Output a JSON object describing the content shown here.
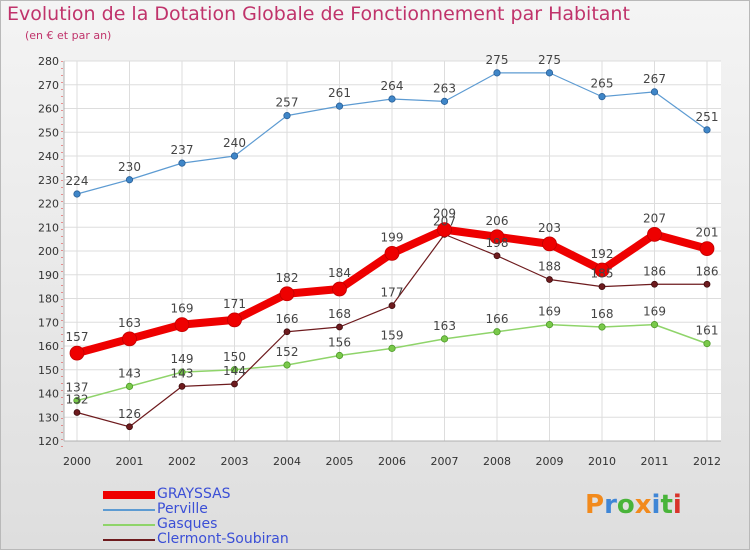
{
  "logo": {
    "text": "Proxiti",
    "colors": [
      "#f28a1c",
      "#3f86d6",
      "#49b43a",
      "#f28a1c",
      "#3f86d6",
      "#49b43a",
      "#d9342b"
    ]
  },
  "chart_data": {
    "type": "line",
    "title": "Evolution de la Dotation Globale de Fonctionnement par Habitant",
    "subtitle": "(en € et par an)",
    "x": [
      "2000",
      "2001",
      "2002",
      "2003",
      "2004",
      "2005",
      "2006",
      "2007",
      "2008",
      "2009",
      "2010",
      "2011",
      "2012"
    ],
    "ylim": [
      120,
      280
    ],
    "yticks": [
      120,
      130,
      140,
      150,
      160,
      170,
      180,
      190,
      200,
      210,
      220,
      230,
      240,
      250,
      260,
      270,
      280
    ],
    "grid": true,
    "legend_position": "bottom-left",
    "series": [
      {
        "name": "Perville",
        "color": "#5d9bd2",
        "values": [
          224,
          230,
          237,
          240,
          257,
          261,
          264,
          263,
          275,
          275,
          265,
          267,
          251
        ],
        "labels": [
          "224",
          "230",
          "237",
          "240",
          "257",
          "261",
          "264",
          "263",
          "275",
          "275",
          "265",
          "267",
          "251"
        ]
      },
      {
        "name": "Gasques",
        "color": "#8fd46a",
        "values": [
          137,
          143,
          149,
          150,
          152,
          156,
          159,
          163,
          166,
          169,
          168,
          169,
          161
        ],
        "labels": [
          "137",
          "143",
          "149",
          "150",
          "152",
          "156",
          "159",
          "163",
          "166",
          "169",
          "168",
          "169",
          "161"
        ]
      },
      {
        "name": "Clermont-Soubiran",
        "color": "#6e1b1e",
        "values": [
          132,
          126,
          143,
          144,
          166,
          168,
          177,
          207,
          198,
          188,
          185,
          186,
          186
        ],
        "labels": [
          "132",
          "126",
          "143",
          "144",
          "166",
          "168",
          "177",
          "207",
          "198",
          "188",
          "185",
          "186",
          "186"
        ]
      },
      {
        "name": "GRAYSSAS",
        "color": "#ee0000",
        "values": [
          157,
          163,
          169,
          171,
          182,
          184,
          199,
          209,
          206,
          203,
          192,
          207,
          201
        ],
        "labels": [
          "157",
          "163",
          "169",
          "171",
          "182",
          "184",
          "199",
          "209",
          "206",
          "203",
          "192",
          "207",
          "201"
        ]
      }
    ],
    "legend_order": [
      "GRAYSSAS",
      "Perville",
      "Gasques",
      "Clermont-Soubiran"
    ]
  }
}
